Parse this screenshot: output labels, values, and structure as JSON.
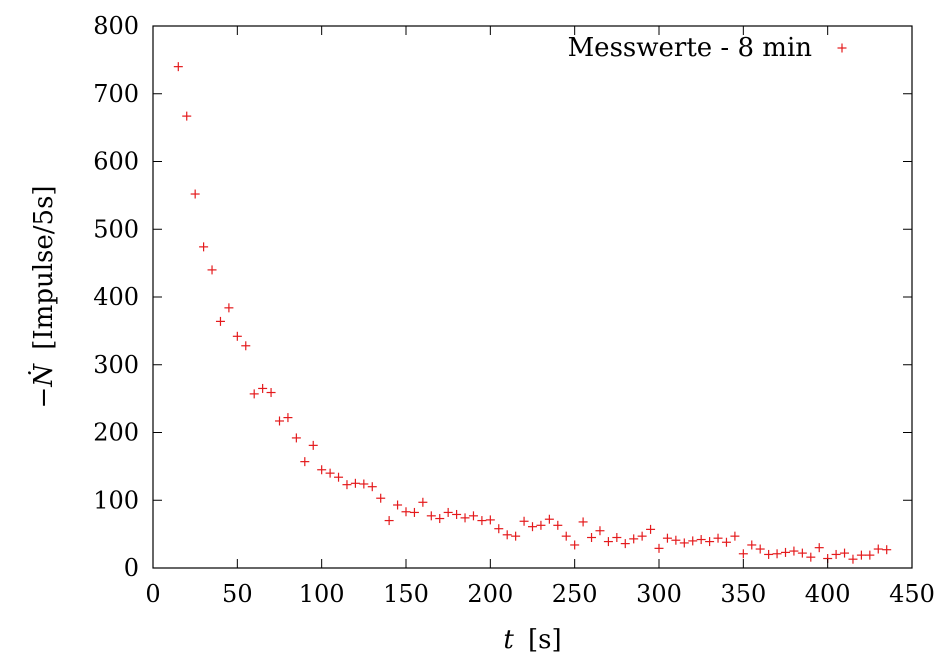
{
  "chart_data": {
    "type": "scatter",
    "title": "",
    "xlabel": "t [s]",
    "xlabel_var": "t",
    "xlabel_unit": "[s]",
    "ylabel": "−Ṅ [Impulse/5s]",
    "ylabel_var": "−Ṅ",
    "ylabel_unit": "[Impulse/5s]",
    "xlim": [
      0,
      450
    ],
    "ylim": [
      0,
      800
    ],
    "xticks": [
      0,
      50,
      100,
      150,
      200,
      250,
      300,
      350,
      400,
      450
    ],
    "yticks": [
      0,
      100,
      200,
      300,
      400,
      500,
      600,
      700,
      800
    ],
    "grid": false,
    "legend_position": "top-right",
    "series": [
      {
        "name": "Messwerte - 8 min",
        "color": "#e41a1c",
        "marker": "plus",
        "x": [
          15,
          20,
          25,
          30,
          35,
          40,
          45,
          50,
          55,
          60,
          65,
          70,
          75,
          80,
          85,
          90,
          95,
          100,
          105,
          110,
          115,
          120,
          125,
          130,
          135,
          140,
          145,
          150,
          155,
          160,
          165,
          170,
          175,
          180,
          185,
          190,
          195,
          200,
          205,
          210,
          215,
          220,
          225,
          230,
          235,
          240,
          245,
          250,
          255,
          260,
          265,
          270,
          275,
          280,
          285,
          290,
          295,
          300,
          305,
          310,
          315,
          320,
          325,
          330,
          335,
          340,
          345,
          350,
          355,
          360,
          365,
          370,
          375,
          380,
          385,
          390,
          395,
          400,
          405,
          410,
          415,
          420,
          425,
          430,
          435
        ],
        "y": [
          740,
          667,
          552,
          474,
          440,
          364,
          384,
          342,
          328,
          257,
          265,
          259,
          217,
          222,
          192,
          157,
          181,
          145,
          140,
          134,
          123,
          125,
          124,
          120,
          103,
          70,
          93,
          83,
          82,
          97,
          77,
          73,
          82,
          79,
          74,
          77,
          70,
          71,
          58,
          49,
          47,
          69,
          61,
          63,
          72,
          63,
          47,
          34,
          68,
          45,
          55,
          39,
          45,
          36,
          43,
          47,
          57,
          29,
          44,
          41,
          37,
          40,
          42,
          39,
          44,
          38,
          47,
          21,
          34,
          28,
          20,
          21,
          23,
          25,
          22,
          16,
          30,
          14,
          20,
          22,
          13,
          19,
          19,
          28,
          27
        ]
      }
    ]
  }
}
